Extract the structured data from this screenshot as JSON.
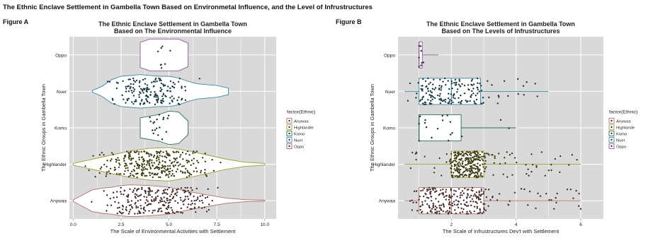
{
  "page": {
    "title": "The Ethnic Enclave Settlement in Gambella Town Based on Environmetal Influence, and the Level of Infrustructures",
    "figure_a_label": "Figure A",
    "figure_b_label": "Figure B"
  },
  "colors": {
    "panel_bg": "#d9d9d9",
    "grid": "#ffffff",
    "Anywaa": "#b07070",
    "Highlander": "#9e9e3a",
    "Komo": "#2e6e5e",
    "Nuer": "#3e8aa0",
    "Oppo": "#8e5a9e"
  },
  "chart_data": [
    {
      "type": "violin",
      "title_line1": "The Ethnic Enclave Settlement in Gambella Town",
      "title_line2": "Based on The Environmental Influence",
      "xlabel": "The Scale of Environmental Activities with Settlement",
      "ylabel": "The Ethnic Groups in Gambella Town",
      "xlim": [
        -0.2,
        10.6
      ],
      "x_ticks": [
        "0.0",
        "2.5",
        "5.0",
        "7.5",
        "10.0"
      ],
      "x_tick_values": [
        0,
        2.5,
        5,
        7.5,
        10
      ],
      "categories": [
        "Oppo",
        "Nuer",
        "Komo",
        "Highlander",
        "Anywaa"
      ],
      "legend_title": "factor(Ethnic)",
      "legend_entries": [
        "Anywaa",
        "Highlander",
        "Komo",
        "Nuer",
        "Oppo"
      ],
      "legend_position": "right",
      "grid": true,
      "series": [
        {
          "group": "Oppo",
          "min": 3.5,
          "max": 6.0,
          "n": 8,
          "profile": [
            [
              3.5,
              0.75
            ],
            [
              4.0,
              0.95
            ],
            [
              4.5,
              0.95
            ],
            [
              5.0,
              0.95
            ],
            [
              5.5,
              0.95
            ],
            [
              6.0,
              0.7
            ]
          ]
        },
        {
          "group": "Nuer",
          "min": 1.0,
          "max": 8.1,
          "n": 170,
          "profile": [
            [
              1.0,
              0.05
            ],
            [
              1.5,
              0.3
            ],
            [
              2.0,
              0.7
            ],
            [
              2.5,
              0.9
            ],
            [
              3.0,
              0.95
            ],
            [
              3.5,
              1.0
            ],
            [
              4.0,
              0.95
            ],
            [
              4.5,
              0.9
            ],
            [
              5.0,
              0.9
            ],
            [
              5.5,
              0.8
            ],
            [
              6.0,
              0.6
            ],
            [
              6.5,
              0.45
            ],
            [
              7.0,
              0.4
            ],
            [
              7.5,
              0.35
            ],
            [
              8.1,
              0.2
            ]
          ]
        },
        {
          "group": "Komo",
          "min": 3.5,
          "max": 6.0,
          "n": 18,
          "profile": [
            [
              3.5,
              0.6
            ],
            [
              4.0,
              0.7
            ],
            [
              4.5,
              0.8
            ],
            [
              5.0,
              1.0
            ],
            [
              5.5,
              0.95
            ],
            [
              6.0,
              0.4
            ]
          ]
        },
        {
          "group": "Highlander",
          "min": 0.0,
          "max": 10.0,
          "n": 330,
          "profile": [
            [
              0.0,
              0.05
            ],
            [
              1.0,
              0.3
            ],
            [
              2.0,
              0.55
            ],
            [
              3.0,
              0.8
            ],
            [
              4.0,
              0.95
            ],
            [
              5.0,
              1.0
            ],
            [
              6.0,
              0.8
            ],
            [
              7.0,
              0.55
            ],
            [
              8.0,
              0.3
            ],
            [
              9.0,
              0.12
            ],
            [
              10.0,
              0.05
            ]
          ]
        },
        {
          "group": "Anywaa",
          "min": 0.0,
          "max": 10.0,
          "n": 260,
          "profile": [
            [
              0.0,
              0.05
            ],
            [
              0.5,
              0.35
            ],
            [
              1.0,
              0.65
            ],
            [
              1.5,
              0.75
            ],
            [
              2.0,
              0.8
            ],
            [
              2.5,
              0.9
            ],
            [
              3.0,
              0.95
            ],
            [
              4.0,
              0.9
            ],
            [
              5.0,
              0.8
            ],
            [
              6.0,
              0.55
            ],
            [
              7.0,
              0.35
            ],
            [
              8.0,
              0.15
            ],
            [
              9.0,
              0.06
            ],
            [
              10.0,
              0.03
            ]
          ]
        }
      ]
    },
    {
      "type": "box",
      "title_line1": "The Ethnic Enclave Settlement in Gambella Town",
      "title_line2": "Based on The Levels of Infrustructures",
      "xlabel": "The Scale of Infrustructures Dev't with Settlement",
      "ylabel": "The Ethnic Groups in Gambella Town",
      "xlim": [
        0.35,
        6.7
      ],
      "x_ticks": [
        "2",
        "4",
        "6"
      ],
      "x_tick_values": [
        2,
        4,
        6
      ],
      "categories": [
        "Oppo",
        "Nuer",
        "Komo",
        "Highlander",
        "Anywaa"
      ],
      "legend_title": "factor(Ethnic)",
      "legend_entries": [
        "Anywaa",
        "Highlande",
        "Komo",
        "Nuer",
        "Oppo"
      ],
      "legend_position": "right",
      "grid": true,
      "series": [
        {
          "group": "Oppo",
          "whisker_low": 1.0,
          "q1": 1.0,
          "median": 1.0,
          "q3": 1.1,
          "whisker_high": 1.6,
          "n": 8
        },
        {
          "group": "Nuer",
          "whisker_low": 0.55,
          "q1": 1.0,
          "median": 2.0,
          "q3": 2.9,
          "whisker_high": 5.0,
          "n": 170
        },
        {
          "group": "Komo",
          "whisker_low": 1.0,
          "q1": 1.0,
          "median": 1.0,
          "q3": 2.3,
          "whisker_high": 4.0,
          "n": 18
        },
        {
          "group": "Highlander",
          "whisker_low": 0.55,
          "q1": 2.0,
          "median": 2.0,
          "q3": 3.0,
          "whisker_high": 6.0,
          "n": 330
        },
        {
          "group": "Anywaa",
          "whisker_low": 0.55,
          "q1": 1.0,
          "median": 2.0,
          "q3": 3.0,
          "whisker_high": 6.0,
          "n": 260
        }
      ]
    }
  ]
}
